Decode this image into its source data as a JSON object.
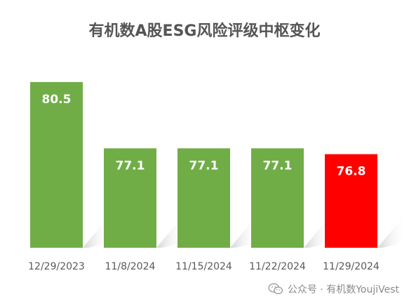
{
  "chart_data": {
    "type": "bar",
    "title": "有机数A股ESG风险评级中枢变化",
    "xlabel": "",
    "ylabel": "",
    "categories": [
      "12/29/2023",
      "11/8/2024",
      "11/15/2024",
      "11/22/2024",
      "11/29/2024"
    ],
    "values": [
      80.5,
      77.1,
      77.1,
      77.1,
      76.8
    ],
    "data_labels": [
      "80.5",
      "77.1",
      "77.1",
      "77.1",
      "76.8"
    ],
    "colors": [
      "#70ad47",
      "#70ad47",
      "#70ad47",
      "#70ad47",
      "#ff0000"
    ],
    "ylim": [
      72,
      81
    ],
    "grid": false,
    "legend": "none"
  },
  "watermark": {
    "icon": "wechat-icon",
    "text": "公众号 · 有机数YoujiVest"
  }
}
